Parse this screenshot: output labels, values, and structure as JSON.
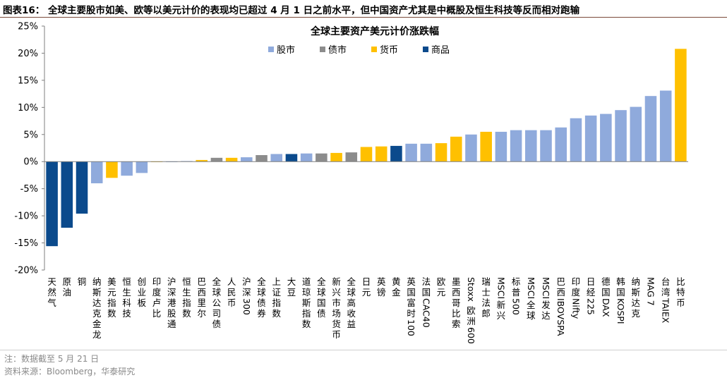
{
  "figure": {
    "label": "图表16：",
    "caption": "全球主要股市如美、欧等以美元计价的表现均已超过 4 月 1 日之前水平，但中国资产尤其是中概股及恒生科技等反而相对跑输"
  },
  "footer": {
    "note": "注：数据截至 5 月 21 日",
    "source": "资料来源：Bloomberg，华泰研究"
  },
  "colors": {
    "股市": "#8faadc",
    "债市": "#8c8c8c",
    "货币": "#ffc000",
    "商品": "#0b4a8c"
  },
  "chart_data": {
    "type": "bar",
    "title": "全球主要资产美元计价涨跌幅",
    "xlabel": "",
    "ylabel": "",
    "ylim": [
      -20,
      25
    ],
    "yticks": [
      "25%",
      "20%",
      "15%",
      "10%",
      "5%",
      "0%",
      "-5%",
      "-10%",
      "-15%",
      "-20%"
    ],
    "grid": false,
    "legend_position": "top",
    "legend": [
      "股市",
      "债市",
      "货币",
      "商品"
    ],
    "unit": "%",
    "categories": [
      "天然气",
      "原油",
      "铜",
      "纳斯达克金龙",
      "美元指数",
      "恒生科技",
      "创业板",
      "印度卢比",
      "沪深港股通",
      "恒生指数",
      "巴西里尔",
      "全球公司债",
      "人民币",
      "沪深300",
      "全球债券",
      "上证指数",
      "大豆",
      "道琼斯指数",
      "全球国债",
      "新兴市场货币",
      "全球高收益",
      "日元",
      "英镑",
      "黄金",
      "英国富时100",
      "法国CAC40",
      "欧元",
      "墨西哥比索",
      "Stoxx欧洲600",
      "瑞士法郎",
      "MSCI新兴",
      "标普500",
      "MSCI全球",
      "MSCI发达",
      "巴西IBOVSPA",
      "印度Nifty",
      "日经225",
      "德国DAX",
      "韩国KOSPI",
      "纳斯达克",
      "MAG 7",
      "台湾TAIEX",
      "比特币"
    ],
    "values": [
      -15.6,
      -12.2,
      -9.6,
      -4.0,
      -3.0,
      -2.6,
      -2.1,
      -0.1,
      -0.1,
      0.1,
      0.3,
      0.7,
      0.7,
      0.8,
      1.2,
      1.4,
      1.4,
      1.5,
      1.5,
      1.6,
      1.7,
      2.7,
      2.8,
      2.9,
      3.3,
      3.3,
      3.4,
      4.6,
      5.0,
      5.5,
      5.5,
      5.8,
      5.8,
      5.8,
      6.3,
      8.0,
      8.5,
      8.8,
      9.5,
      10.1,
      12.1,
      13.1,
      20.8
    ],
    "groups": [
      "商品",
      "商品",
      "商品",
      "股市",
      "货币",
      "股市",
      "股市",
      "货币",
      "股市",
      "股市",
      "货币",
      "债市",
      "货币",
      "股市",
      "债市",
      "股市",
      "商品",
      "股市",
      "债市",
      "货币",
      "债市",
      "货币",
      "货币",
      "商品",
      "股市",
      "股市",
      "货币",
      "货币",
      "股市",
      "货币",
      "股市",
      "股市",
      "股市",
      "股市",
      "股市",
      "股市",
      "股市",
      "股市",
      "股市",
      "股市",
      "股市",
      "股市",
      "货币"
    ]
  }
}
